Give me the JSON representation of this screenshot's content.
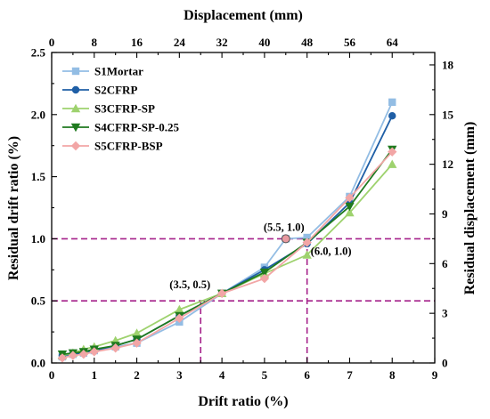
{
  "chart_data": {
    "type": "line",
    "xlabel": "Drift ratio (%)",
    "ylabel": "Residual drift ratio (%)",
    "top_xlabel": "Displacement (mm)",
    "right_ylabel": "Residual displacement (mm)",
    "xlim": [
      0,
      9
    ],
    "ylim": [
      0,
      2.5
    ],
    "top_xlim": [
      0,
      72
    ],
    "right_ylim": [
      0,
      18.75
    ],
    "x_ticks": [
      "0",
      "1",
      "2",
      "3",
      "4",
      "5",
      "6",
      "7",
      "8",
      "9"
    ],
    "y_ticks": [
      "0.0",
      "0.5",
      "1.0",
      "1.5",
      "2.0",
      "2.5"
    ],
    "top_x_ticks": [
      "0",
      "8",
      "16",
      "24",
      "32",
      "40",
      "48",
      "56",
      "64"
    ],
    "right_y_ticks": [
      "0",
      "3",
      "6",
      "9",
      "12",
      "15",
      "18"
    ],
    "grid": false,
    "legend_position": "top-left",
    "series": [
      {
        "name": "S1Mortar",
        "color": "#93bde4",
        "marker": "square",
        "x": [
          0.25,
          0.5,
          0.75,
          1.0,
          1.5,
          2.0,
          3.0,
          4.0,
          5.0,
          5.5,
          6.0,
          7.0,
          8.0
        ],
        "y": [
          0.05,
          0.07,
          0.08,
          0.1,
          0.13,
          0.16,
          0.33,
          0.56,
          0.77,
          1.0,
          1.01,
          1.34,
          2.1
        ]
      },
      {
        "name": "S2CFRP",
        "color": "#1f5fa6",
        "marker": "circle",
        "x": [
          0.25,
          0.5,
          0.75,
          1.0,
          1.5,
          2.0,
          3.0,
          4.0,
          5.0,
          6.0,
          7.0,
          8.0
        ],
        "y": [
          0.06,
          0.07,
          0.08,
          0.1,
          0.14,
          0.19,
          0.38,
          0.56,
          0.75,
          0.96,
          1.29,
          1.99
        ]
      },
      {
        "name": "S3CFRP-SP",
        "color": "#9ed26e",
        "marker": "triangle-up",
        "x": [
          0.25,
          0.5,
          0.75,
          1.0,
          1.5,
          2.0,
          3.0,
          4.0,
          5.0,
          6.0,
          7.0,
          8.0
        ],
        "y": [
          0.06,
          0.08,
          0.11,
          0.13,
          0.18,
          0.24,
          0.43,
          0.56,
          0.72,
          0.87,
          1.21,
          1.6
        ]
      },
      {
        "name": "S4CFRP-SP-0.25",
        "color": "#1f7a1f",
        "marker": "triangle-down",
        "x": [
          0.25,
          0.5,
          0.75,
          1.0,
          1.5,
          2.0,
          3.0,
          4.0,
          5.0,
          6.0,
          7.0,
          8.0
        ],
        "y": [
          0.07,
          0.08,
          0.09,
          0.11,
          0.14,
          0.19,
          0.38,
          0.56,
          0.73,
          0.97,
          1.26,
          1.72
        ]
      },
      {
        "name": "S5CFRP-BSP",
        "color": "#f2a6a6",
        "marker": "diamond",
        "x": [
          0.25,
          0.5,
          0.75,
          1.0,
          1.5,
          2.0,
          3.0,
          4.0,
          5.0,
          6.0,
          7.0,
          8.0
        ],
        "y": [
          0.04,
          0.06,
          0.07,
          0.09,
          0.12,
          0.16,
          0.36,
          0.56,
          0.68,
          0.97,
          1.33,
          1.7
        ]
      }
    ],
    "reference_lines": {
      "horizontal": [
        0.5,
        1.0
      ],
      "vertical": [
        3.5,
        6.0
      ],
      "color": "#a5218a"
    },
    "annotations": [
      {
        "text": "(3.5, 0.5)",
        "x": 3.5,
        "y": 0.5
      },
      {
        "text": "(5.5, 1.0)",
        "x": 5.5,
        "y": 1.0
      },
      {
        "text": "(6.0, 1.0)",
        "x": 6.0,
        "y": 1.0
      }
    ],
    "highlight_point": {
      "x": 5.5,
      "y": 1.0,
      "color": "#e89aa0"
    }
  }
}
